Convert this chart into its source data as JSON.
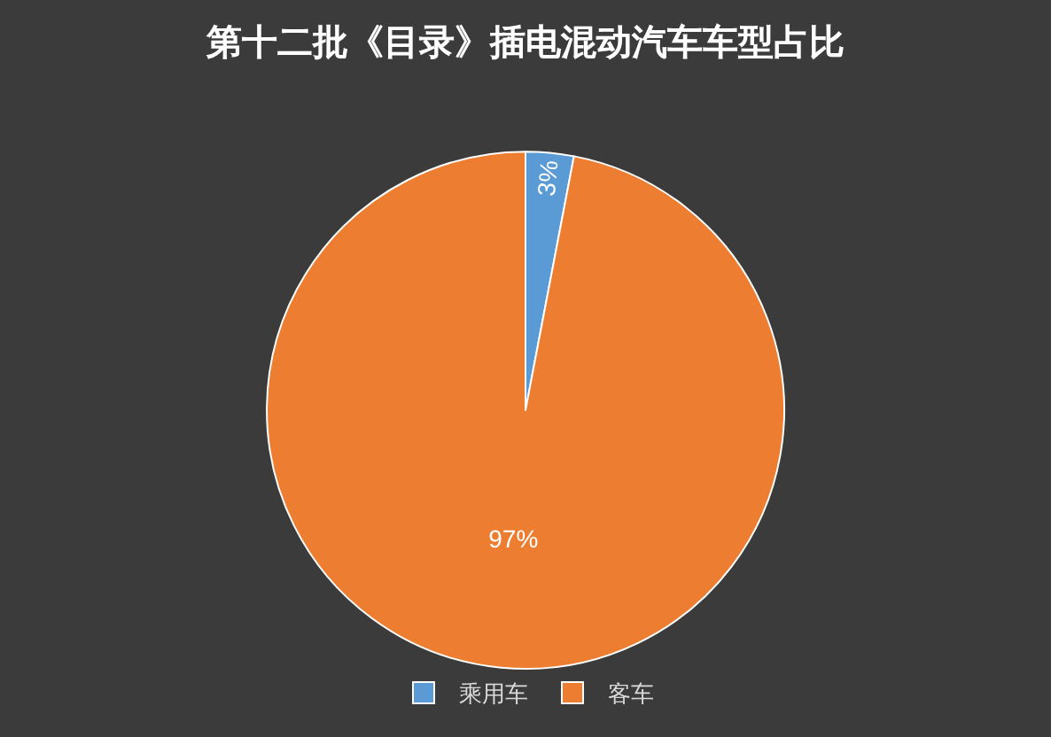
{
  "chart_data": {
    "type": "pie",
    "title": "第十二批《目录》插电混动汽车车型占比",
    "categories": [
      "乘用车",
      "客车"
    ],
    "values": [
      3,
      97
    ],
    "colors": [
      "#5b9bd5",
      "#ed7d31"
    ],
    "value_labels": [
      "3%",
      "97%"
    ],
    "legend": "bottom"
  }
}
